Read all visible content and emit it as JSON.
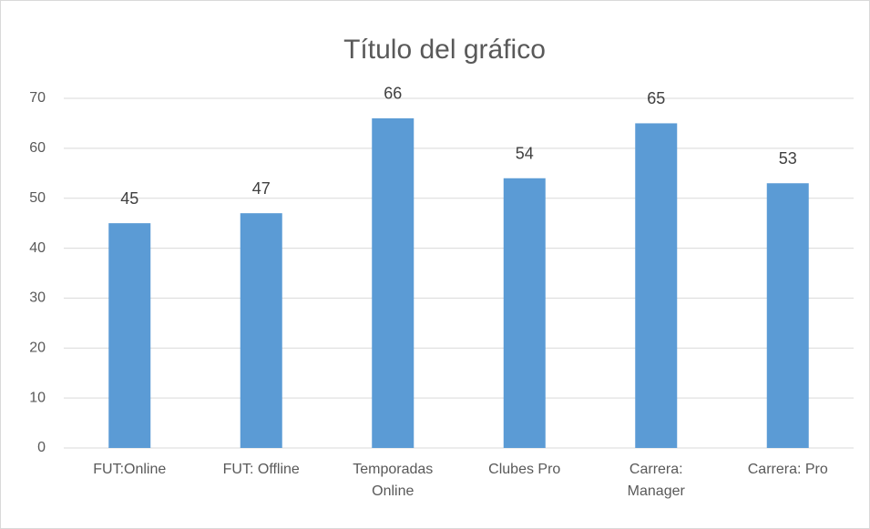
{
  "chart_data": {
    "type": "bar",
    "title": "Título del gráfico",
    "categories": [
      "FUT:Online",
      "FUT: Offline",
      "Temporadas Online",
      "Clubes Pro",
      "Carrera: Manager",
      "Carrera: Pro"
    ],
    "values": [
      45,
      47,
      66,
      54,
      65,
      53
    ],
    "color": "#5b9bd5",
    "ylim": [
      0,
      70
    ],
    "yticks": [
      0,
      10,
      20,
      30,
      40,
      50,
      60,
      70
    ],
    "grid": true
  }
}
